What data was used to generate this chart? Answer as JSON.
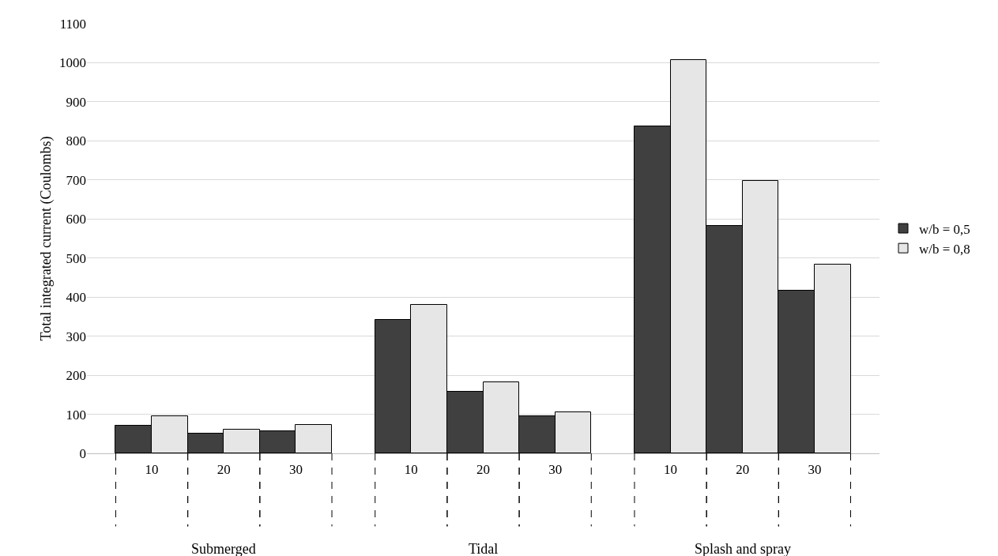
{
  "chart_data": {
    "type": "bar",
    "ylabel": "Total integrated current (Coulombs)",
    "categories": [
      "10",
      "20",
      "30",
      "10",
      "20",
      "30",
      "10",
      "20",
      "30"
    ],
    "series": [
      {
        "name": "w/b = 0,5",
        "color": "#404040",
        "values": [
          71,
          51,
          56,
          342,
          157,
          95,
          838,
          583,
          416
        ]
      },
      {
        "name": "w/b = 0,8",
        "color": "#e6e6e6",
        "values": [
          95,
          60,
          72,
          381,
          183,
          105,
          1007,
          698,
          484
        ]
      }
    ],
    "annotations": [
      "Submerged",
      "Tidal",
      "Splash and spray"
    ],
    "ylim": [
      0,
      1100
    ],
    "yticks": [
      0,
      100,
      200,
      300,
      400,
      500,
      600,
      700,
      800,
      900,
      1000,
      1100
    ],
    "grid": "y",
    "legend": "right"
  }
}
